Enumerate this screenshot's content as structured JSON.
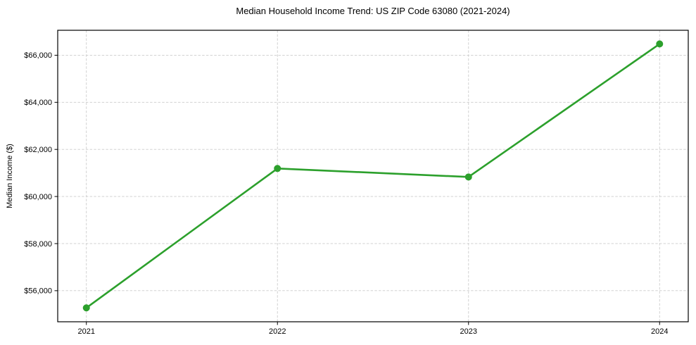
{
  "chart_data": {
    "type": "line",
    "title": "Median Household Income Trend: US ZIP Code 63080 (2021-2024)",
    "xlabel": "",
    "ylabel": "Median Income ($)",
    "x": [
      2021,
      2022,
      2023,
      2024
    ],
    "x_tick_labels": [
      "2021",
      "2022",
      "2023",
      "2024"
    ],
    "values": [
      55270,
      61190,
      60830,
      66480
    ],
    "series_name": "Median Household Income",
    "yticks": [
      56000,
      58000,
      60000,
      62000,
      64000,
      66000
    ],
    "y_tick_labels": [
      "$56,000",
      "$58,000",
      "$60,000",
      "$62,000",
      "$64,000",
      "$66,000"
    ],
    "xlim": [
      2020.85,
      2024.15
    ],
    "ylim": [
      54680,
      67060
    ],
    "grid": true,
    "grid_style": "dashed",
    "legend": "none",
    "line_color": "#2ca02c",
    "marker": "circle",
    "marker_color": "#2ca02c",
    "grid_color": "#cccccc",
    "axis_color": "#000000",
    "text_color": "#000000",
    "background_color": "#ffffff"
  }
}
